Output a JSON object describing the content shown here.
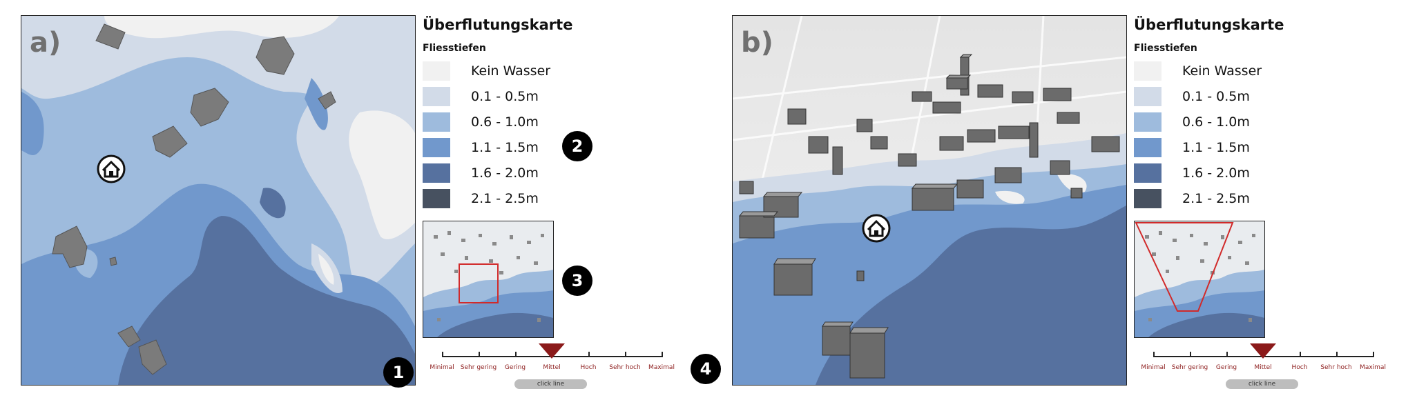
{
  "colors": {
    "kein_wasser": "#f1f1f1",
    "d_0_1_0_5": "#d2dbe8",
    "d_0_6_1_0": "#9ebbdd",
    "d_1_1_1_5": "#7198cc",
    "d_1_6_2_0": "#56719f",
    "d_2_1_2_5": "#475160",
    "building": "#7b7b7b",
    "frame_red": "#d12a2a",
    "marker_red": "#8b1a1a"
  },
  "panels": [
    {
      "letter": "a)",
      "legend": {
        "title": "Überflutungskarte",
        "subtitle": "Fliesstiefen",
        "items": [
          {
            "label": "Kein Wasser",
            "color": "#f1f1f1"
          },
          {
            "label": "0.1 - 0.5m",
            "color": "#d2dbe8"
          },
          {
            "label": "0.6 - 1.0m",
            "color": "#9ebbdd"
          },
          {
            "label": "1.1 - 1.5m",
            "color": "#7198cc"
          },
          {
            "label": "1.6 - 2.0m",
            "color": "#56719f"
          },
          {
            "label": "2.1 - 2.5m",
            "color": "#475160"
          }
        ]
      },
      "scale": {
        "levels": [
          "Minimal",
          "Sehr gering",
          "Gering",
          "Mittel",
          "Hoch",
          "Sehr hoch",
          "Maximal"
        ],
        "selected": "Mittel",
        "button_label": "click line"
      }
    },
    {
      "letter": "b)",
      "legend": {
        "title": "Überflutungskarte",
        "subtitle": "Fliesstiefen",
        "items": [
          {
            "label": "Kein Wasser",
            "color": "#f1f1f1"
          },
          {
            "label": "0.1 - 0.5m",
            "color": "#d2dbe8"
          },
          {
            "label": "0.6 - 1.0m",
            "color": "#9ebbdd"
          },
          {
            "label": "1.1 - 1.5m",
            "color": "#7198cc"
          },
          {
            "label": "1.6 - 2.0m",
            "color": "#56719f"
          },
          {
            "label": "2.1 - 2.5m",
            "color": "#475160"
          }
        ]
      },
      "scale": {
        "levels": [
          "Minimal",
          "Sehr gering",
          "Gering",
          "Mittel",
          "Hoch",
          "Sehr hoch",
          "Maximal"
        ],
        "selected": "Mittel",
        "button_label": "click line"
      }
    }
  ],
  "badges": [
    "1",
    "2",
    "3",
    "4"
  ]
}
